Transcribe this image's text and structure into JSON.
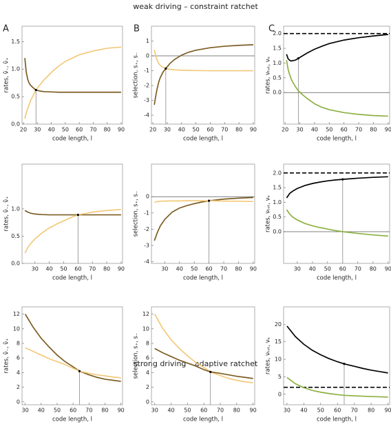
{
  "section_titles": [
    "weak driving – constraint ratchet",
    "strong driving – adaptive ratchet"
  ],
  "chart_data": [
    {
      "type": "line",
      "label": "A",
      "xlabel": "code length, l",
      "ylabel": "rates, ν̂₋, ν̂₊",
      "x": [
        21,
        22,
        23,
        24,
        25,
        27,
        29,
        32,
        35,
        40,
        45,
        50,
        60,
        70,
        80,
        90
      ],
      "series": [
        {
          "color": "#f2c97a",
          "values": [
            0.1,
            0.2,
            0.28,
            0.35,
            0.42,
            0.52,
            0.62,
            0.72,
            0.81,
            0.94,
            1.05,
            1.14,
            1.26,
            1.33,
            1.38,
            1.4
          ]
        },
        {
          "color": "#7b5c22",
          "values": [
            1.2,
            0.95,
            0.82,
            0.75,
            0.71,
            0.66,
            0.62,
            0.6,
            0.59,
            0.585,
            0.58,
            0.58,
            0.58,
            0.58,
            0.58,
            0.58
          ]
        }
      ],
      "xlim": [
        19,
        91
      ],
      "ylim": [
        0,
        1.78
      ],
      "xticks": [
        20,
        30,
        40,
        50,
        60,
        70,
        80,
        90
      ],
      "yticks": [
        {
          "value": 0,
          "label": "0.0"
        },
        {
          "value": 0.5,
          "label": "0.5"
        },
        {
          "value": 1,
          "label": "1.0"
        },
        {
          "value": 1.5,
          "label": "1.5"
        }
      ],
      "marker": {
        "x": 29,
        "y": 0.62
      }
    },
    {
      "type": "line",
      "label": "B",
      "xlabel": "code length, l",
      "ylabel": "selection, s₊, s₋",
      "x": [
        21,
        22,
        23,
        24,
        25,
        27,
        29,
        32,
        35,
        40,
        45,
        50,
        60,
        70,
        80,
        90
      ],
      "series": [
        {
          "color": "#7b5c22",
          "values": [
            -3.3,
            -2.7,
            -2.2,
            -1.8,
            -1.5,
            -1.1,
            -0.85,
            -0.5,
            -0.25,
            0.05,
            0.25,
            0.38,
            0.55,
            0.65,
            0.71,
            0.75
          ]
        },
        {
          "color": "#f2c97a",
          "values": [
            0.4,
            0,
            -0.3,
            -0.5,
            -0.62,
            -0.77,
            -0.85,
            -0.91,
            -0.94,
            -0.97,
            -0.98,
            -0.99,
            -1,
            -1,
            -1,
            -1
          ]
        }
      ],
      "xlim": [
        19,
        91
      ],
      "ylim": [
        -4.6,
        2
      ],
      "xticks": [
        20,
        30,
        40,
        50,
        60,
        70,
        80,
        90
      ],
      "yticks": [
        -4,
        -3,
        -2,
        -1,
        0,
        1
      ],
      "hlines": [
        {
          "y": 0,
          "style": "solid"
        }
      ],
      "marker": {
        "x": 29,
        "y": -0.85
      }
    },
    {
      "type": "line",
      "label": "C",
      "xlabel": "code length, l",
      "ylabel": "rates, νₜₒₜ, νₑ",
      "x": [
        21,
        22,
        23,
        24,
        25,
        27,
        29,
        32,
        35,
        40,
        45,
        50,
        60,
        70,
        80,
        90
      ],
      "series": [
        {
          "color": "#000000",
          "values": [
            1.3,
            1.15,
            1.1,
            1.07,
            1.08,
            1.1,
            1.16,
            1.25,
            1.34,
            1.47,
            1.57,
            1.66,
            1.78,
            1.86,
            1.92,
            1.97
          ]
        },
        {
          "color": "#8db040",
          "values": [
            1.1,
            0.8,
            0.62,
            0.48,
            0.37,
            0.2,
            0.06,
            -0.08,
            -0.2,
            -0.38,
            -0.5,
            -0.58,
            -0.68,
            -0.74,
            -0.78,
            -0.8
          ]
        }
      ],
      "xlim": [
        19,
        91
      ],
      "ylim": [
        -1.07,
        2.25
      ],
      "xticks": [
        20,
        30,
        40,
        50,
        60,
        70,
        80,
        90
      ],
      "yticks": [
        {
          "value": 0,
          "label": "0.0"
        },
        {
          "value": 0.5,
          "label": "0.5"
        },
        {
          "value": 1,
          "label": "1.0"
        },
        {
          "value": 1.5,
          "label": "1.5"
        },
        {
          "value": 2,
          "label": "2.0"
        }
      ],
      "hlines": [
        {
          "y": 0,
          "style": "solid"
        },
        {
          "y": 2,
          "style": "dashed"
        }
      ],
      "marker": {
        "x": 29,
        "y": 1.16
      }
    },
    {
      "type": "line",
      "xlabel": "code length, l",
      "ylabel": "rates, ν̂₋, ν̂₊",
      "x": [
        23,
        25,
        27,
        30,
        35,
        40,
        45,
        50,
        55,
        60,
        70,
        80,
        90
      ],
      "series": [
        {
          "color": "#7b5c22",
          "values": [
            0.97,
            0.94,
            0.92,
            0.905,
            0.895,
            0.89,
            0.89,
            0.89,
            0.89,
            0.89,
            0.89,
            0.89,
            0.89
          ]
        },
        {
          "color": "#f2c97a",
          "values": [
            0.19,
            0.29,
            0.36,
            0.45,
            0.56,
            0.65,
            0.72,
            0.78,
            0.84,
            0.89,
            0.94,
            0.97,
            0.99
          ]
        }
      ],
      "xlim": [
        21,
        91
      ],
      "ylim": [
        0,
        1.82
      ],
      "xticks": [
        30,
        40,
        50,
        60,
        70,
        80,
        90
      ],
      "yticks": [
        {
          "value": 0,
          "label": "0.0"
        },
        {
          "value": 0.5,
          "label": "0.5"
        },
        {
          "value": 1,
          "label": "1.0"
        }
      ],
      "marker": {
        "x": 60,
        "y": 0.89
      }
    },
    {
      "type": "line",
      "xlabel": "code length, l",
      "ylabel": "selection, s₊, s₋",
      "x": [
        23,
        25,
        27,
        30,
        35,
        40,
        45,
        50,
        55,
        60,
        70,
        80,
        90
      ],
      "series": [
        {
          "color": "#7b5c22",
          "values": [
            -2.7,
            -2.2,
            -1.8,
            -1.4,
            -0.95,
            -0.7,
            -0.55,
            -0.43,
            -0.33,
            -0.25,
            -0.15,
            -0.09,
            -0.05
          ]
        },
        {
          "color": "#f2c97a",
          "values": [
            -0.35,
            -0.3,
            -0.28,
            -0.27,
            -0.26,
            -0.26,
            -0.25,
            -0.25,
            -0.25,
            -0.25,
            -0.27,
            -0.28,
            -0.3
          ]
        }
      ],
      "xlim": [
        21,
        91
      ],
      "ylim": [
        -4.1,
        2
      ],
      "xticks": [
        30,
        40,
        50,
        60,
        70,
        80,
        90
      ],
      "yticks": [
        -4,
        -3,
        -2,
        -1,
        0
      ],
      "hlines": [
        {
          "y": 0,
          "style": "solid"
        }
      ],
      "marker": {
        "x": 60,
        "y": -0.25
      }
    },
    {
      "type": "line",
      "xlabel": "code length, l",
      "ylabel": "rates, νₜₒₜ, νₑ",
      "x": [
        23,
        25,
        27,
        30,
        35,
        40,
        45,
        50,
        55,
        60,
        70,
        80,
        90
      ],
      "series": [
        {
          "color": "#000000",
          "values": [
            1.15,
            1.3,
            1.38,
            1.47,
            1.57,
            1.64,
            1.69,
            1.73,
            1.76,
            1.78,
            1.82,
            1.85,
            1.87
          ]
        },
        {
          "color": "#8db040",
          "values": [
            0.75,
            0.6,
            0.5,
            0.4,
            0.28,
            0.2,
            0.14,
            0.09,
            0.04,
            0,
            -0.06,
            -0.11,
            -0.15
          ]
        }
      ],
      "xlim": [
        21,
        91
      ],
      "ylim": [
        -1.08,
        2.3
      ],
      "xticks": [
        30,
        40,
        50,
        60,
        70,
        80,
        90
      ],
      "yticks": [
        {
          "value": 0,
          "label": "0.0"
        },
        {
          "value": 0.5,
          "label": "0.5"
        },
        {
          "value": 1,
          "label": "1.0"
        },
        {
          "value": 1.5,
          "label": "1.5"
        },
        {
          "value": 2,
          "label": "2.0"
        }
      ],
      "hlines": [
        {
          "y": 0,
          "style": "solid"
        },
        {
          "y": 2,
          "style": "dashed"
        }
      ],
      "marker": {
        "x": 60,
        "y": 1.78
      }
    },
    {
      "type": "line",
      "xlabel": "code length, l",
      "ylabel": "rates, ν̂₋, ν̂₊",
      "x": [
        30,
        35,
        40,
        45,
        50,
        55,
        60,
        64,
        70,
        75,
        80,
        85,
        90
      ],
      "series": [
        {
          "color": "#7b5c22",
          "values": [
            12,
            10.2,
            8.7,
            7.5,
            6.4,
            5.5,
            4.8,
            4.2,
            3.7,
            3.35,
            3.1,
            2.95,
            2.8
          ]
        },
        {
          "color": "#f2c97a",
          "values": [
            7.4,
            6.9,
            6.4,
            5.9,
            5.5,
            5.1,
            4.6,
            4.2,
            3.9,
            3.7,
            3.55,
            3.4,
            3.3
          ]
        }
      ],
      "xlim": [
        28,
        91
      ],
      "ylim": [
        -0.4,
        13
      ],
      "xticks": [
        30,
        40,
        50,
        60,
        70,
        80,
        90
      ],
      "yticks": [
        0,
        2,
        4,
        6,
        8,
        10,
        12
      ],
      "marker": {
        "x": 64,
        "y": 4.2
      }
    },
    {
      "type": "line",
      "xlabel": "code length, l",
      "ylabel": "selection, s₊, s₋",
      "x": [
        30,
        35,
        40,
        45,
        50,
        55,
        60,
        64,
        70,
        75,
        80,
        85,
        90
      ],
      "series": [
        {
          "color": "#f2c97a",
          "values": [
            12,
            10,
            8.5,
            7.3,
            6.3,
            5.4,
            4.7,
            4.1,
            3.6,
            3.2,
            2.95,
            2.75,
            2.6
          ]
        },
        {
          "color": "#7b5c22",
          "values": [
            7.3,
            6.7,
            6.2,
            5.7,
            5.3,
            4.9,
            4.4,
            4.1,
            3.9,
            3.7,
            3.5,
            3.35,
            3.2
          ]
        }
      ],
      "xlim": [
        28,
        91
      ],
      "ylim": [
        -0.4,
        13
      ],
      "xticks": [
        30,
        40,
        50,
        60,
        70,
        80,
        90
      ],
      "yticks": [
        0,
        2,
        4,
        6,
        8,
        10,
        12
      ],
      "marker": {
        "x": 64,
        "y": 4.1
      }
    },
    {
      "type": "line",
      "xlabel": "code length, l",
      "ylabel": "rates, νₜₒₜ, νₑ",
      "x": [
        30,
        35,
        40,
        45,
        50,
        55,
        60,
        64,
        70,
        75,
        80,
        85,
        90
      ],
      "series": [
        {
          "color": "#000000",
          "values": [
            19.5,
            16.5,
            14.3,
            12.6,
            11.3,
            10.2,
            9.3,
            8.7,
            8,
            7.4,
            6.9,
            6.5,
            6.1
          ]
        },
        {
          "color": "#8db040",
          "values": [
            4.8,
            3,
            1.9,
            1.1,
            0.6,
            0.2,
            -0.1,
            -0.3,
            -0.45,
            -0.55,
            -0.65,
            -0.72,
            -0.8
          ]
        }
      ],
      "xlim": [
        28,
        91
      ],
      "ylim": [
        -3,
        25
      ],
      "xticks": [
        30,
        40,
        50,
        60,
        70,
        80,
        90
      ],
      "yticks": [
        0,
        5,
        10,
        15,
        20
      ],
      "hlines": [
        {
          "y": 2,
          "style": "dashed"
        }
      ],
      "marker": {
        "x": 64,
        "y": 8.7
      }
    }
  ]
}
